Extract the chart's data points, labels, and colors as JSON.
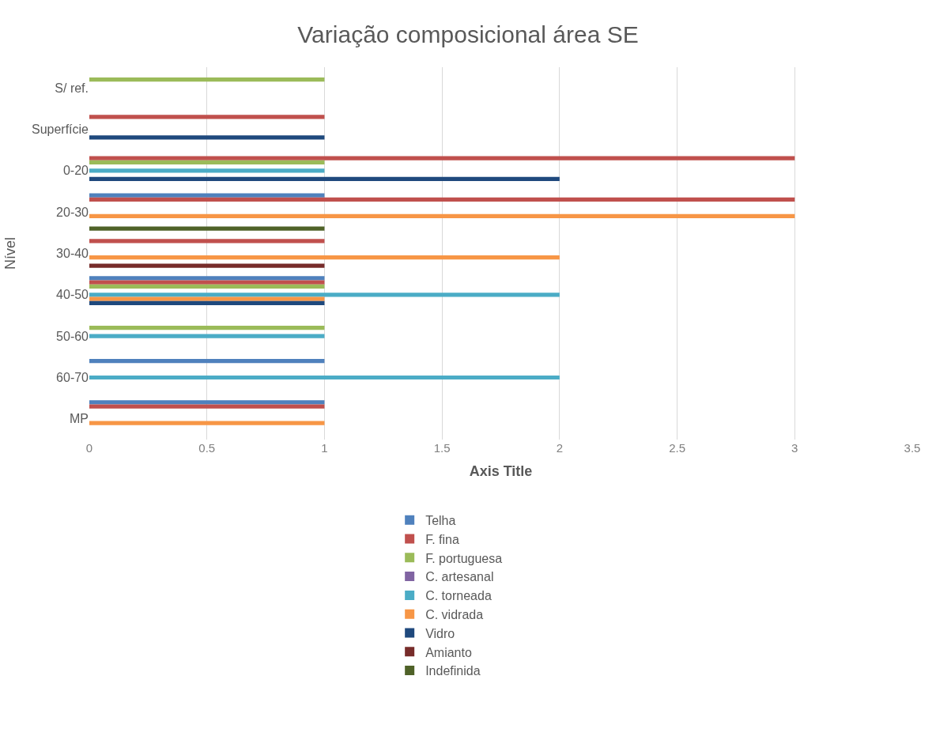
{
  "chart_data": {
    "type": "bar",
    "orientation": "horizontal",
    "title": "Variação composicional área SE",
    "xlabel": "Axis Title",
    "ylabel": "Nível",
    "categories": [
      "S/ ref.",
      "Superfície",
      "0-20",
      "20-30",
      "30-40",
      "40-50",
      "50-60",
      "60-70",
      "MP"
    ],
    "series": [
      {
        "name": "Telha",
        "color": "#4f81bd",
        "values": [
          null,
          null,
          null,
          1,
          null,
          1,
          null,
          1,
          1
        ]
      },
      {
        "name": "F. fina",
        "color": "#c0504d",
        "values": [
          null,
          1,
          3,
          3,
          1,
          1,
          null,
          null,
          1
        ]
      },
      {
        "name": "F. portuguesa",
        "color": "#9bbb59",
        "values": [
          1,
          null,
          1,
          null,
          null,
          1,
          1,
          null,
          null
        ]
      },
      {
        "name": "C. artesanal",
        "color": "#8064a2",
        "values": [
          null,
          null,
          null,
          null,
          null,
          null,
          null,
          null,
          null
        ]
      },
      {
        "name": "C. torneada",
        "color": "#4bacc6",
        "values": [
          null,
          null,
          1,
          null,
          null,
          2,
          1,
          2,
          null
        ]
      },
      {
        "name": "C. vidrada",
        "color": "#f79646",
        "values": [
          null,
          null,
          null,
          3,
          2,
          1,
          null,
          null,
          1
        ]
      },
      {
        "name": "Vidro",
        "color": "#1f497d",
        "values": [
          null,
          1,
          2,
          null,
          null,
          1,
          null,
          null,
          null
        ]
      },
      {
        "name": "Amianto",
        "color": "#772c2a",
        "values": [
          null,
          null,
          null,
          null,
          1,
          null,
          null,
          null,
          null
        ]
      },
      {
        "name": "Indefinida",
        "color": "#4f6228",
        "values": [
          null,
          null,
          null,
          1,
          null,
          null,
          null,
          null,
          null
        ]
      }
    ],
    "xlim": [
      0,
      3.5
    ],
    "xticks": [
      0,
      0.5,
      1,
      1.5,
      2,
      2.5,
      3,
      3.5
    ],
    "grid": "x",
    "legend": "bottom"
  }
}
